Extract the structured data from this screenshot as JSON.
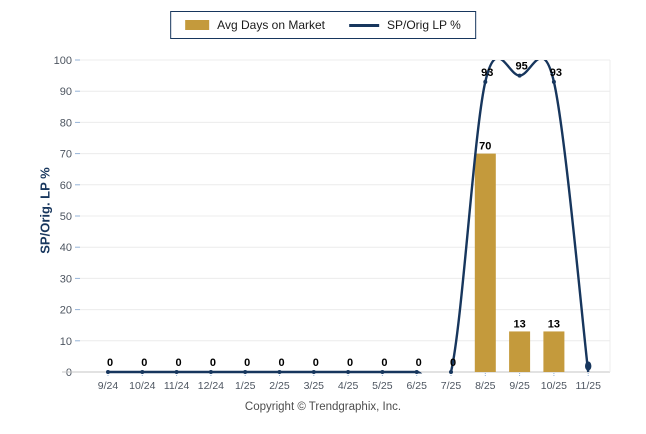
{
  "legend": {
    "bar_label": "Avg Days on Market",
    "line_label": "SP/Orig LP %"
  },
  "footer": {
    "copyright": "Copyright © Trendgraphix, Inc."
  },
  "chart_data": {
    "type": "combo",
    "title": "",
    "ylabel": "SP/Orig. LP %",
    "xlabel": "",
    "ylim": [
      0,
      100
    ],
    "ytick_step": 10,
    "yticks": [
      0,
      10,
      20,
      30,
      40,
      50,
      60,
      70,
      80,
      90,
      100
    ],
    "grid": true,
    "legend_position": "top",
    "categories": [
      "9/24",
      "10/24",
      "11/24",
      "12/24",
      "1/25",
      "2/25",
      "3/25",
      "4/25",
      "5/25",
      "6/25",
      "7/25",
      "8/25",
      "9/25",
      "10/25",
      "11/25"
    ],
    "series": [
      {
        "name": "Avg Days on Market",
        "type": "bar",
        "color": "#C49A3C",
        "values": [
          0,
          0,
          0,
          0,
          0,
          0,
          0,
          0,
          0,
          0,
          0,
          70,
          13,
          13,
          0
        ],
        "shown_labels": [
          "",
          "",
          "",
          "",
          "",
          "",
          "",
          "",
          "",
          "",
          "",
          "70",
          "13",
          "13",
          ""
        ]
      },
      {
        "name": "SP/Orig LP %",
        "type": "line",
        "smooth": true,
        "color": "#17365D",
        "values": [
          0,
          0,
          0,
          0,
          0,
          0,
          0,
          0,
          0,
          0,
          0,
          93,
          95,
          93,
          0
        ],
        "shown_labels": [
          "0",
          "0",
          "0",
          "0",
          "0",
          "0",
          "0",
          "0",
          "0",
          "0",
          "0",
          "93",
          "95",
          "93",
          ""
        ]
      }
    ],
    "colors": {
      "bar": "#C49A3C",
      "line": "#17365D",
      "data_label": "#000000",
      "tick_label": "#4D5560",
      "gridline": "#ECECEC",
      "baseline": "#C6C6C6",
      "tick_mark": "#95B3D7"
    }
  }
}
